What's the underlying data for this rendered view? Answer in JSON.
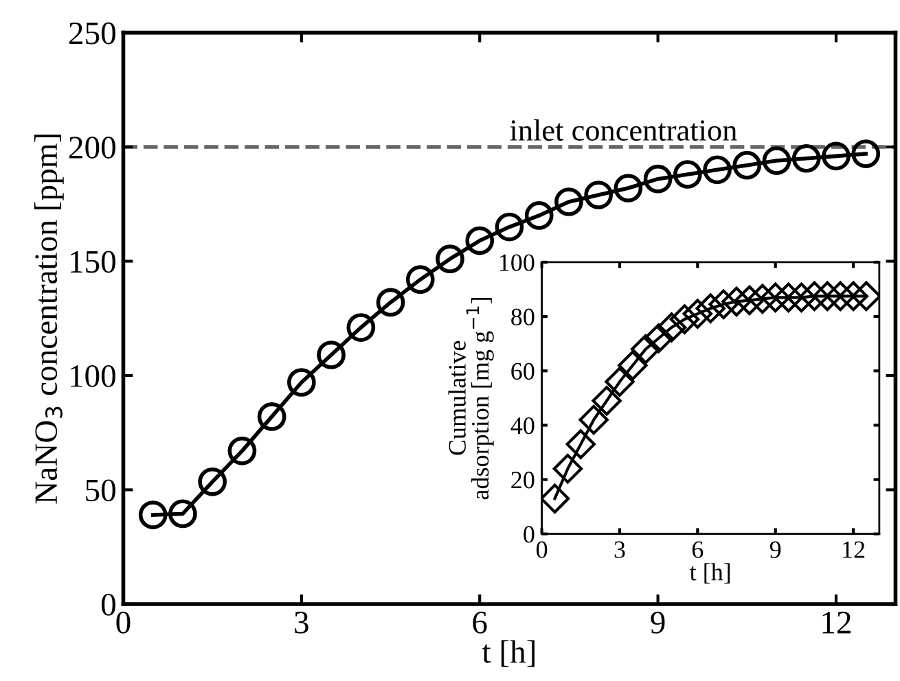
{
  "chart_data": [
    {
      "type": "line",
      "xlabel": "t [h]",
      "ylabel": "NaNO$_{3}$ concentration [ppm]",
      "x": [
        0.5,
        1,
        1.5,
        2,
        2.5,
        3,
        3.5,
        4,
        4.5,
        5,
        5.5,
        6,
        6.5,
        7,
        7.5,
        8,
        8.5,
        9,
        9.5,
        10,
        10.5,
        11,
        11.5,
        12,
        12.5
      ],
      "series": [
        {
          "color": "#000000",
          "values": [
            39,
            39.5,
            53.5,
            67,
            82,
            97,
            109,
            121,
            132,
            142,
            151,
            159,
            165,
            170,
            176,
            179,
            182,
            186,
            188,
            190,
            192,
            194,
            195,
            196,
            197
          ]
        }
      ],
      "marker": "circle",
      "xlim": [
        0,
        13
      ],
      "ylim": [
        0,
        250
      ],
      "xticks": [
        0,
        3,
        6,
        9,
        12
      ],
      "yticks": [
        0,
        50,
        100,
        150,
        200,
        250
      ],
      "ref_lines": [
        {
          "axis": "y",
          "value": 200,
          "label": "inlet concentration",
          "color": "#666666",
          "line_style": "dashed"
        }
      ]
    },
    {
      "type": "line",
      "xlabel": "t [h]",
      "ylabel": "Cumulative\nadsorption [mg g$^{−1}$]",
      "x": [
        0.5,
        1,
        1.5,
        2,
        2.5,
        3,
        3.5,
        4,
        4.5,
        5,
        5.5,
        6,
        6.5,
        7,
        7.5,
        8,
        8.5,
        9,
        9.5,
        10,
        10.5,
        11,
        11.5,
        12,
        12.5
      ],
      "series": [
        {
          "color": "#000000",
          "values": [
            13,
            24,
            33,
            42,
            49,
            56,
            62,
            68,
            72,
            76,
            79,
            81,
            83,
            84.5,
            85.5,
            86,
            86.5,
            87,
            87,
            87,
            87.5,
            87.5,
            87.5,
            87.5,
            87.5
          ]
        }
      ],
      "marker": "diamond",
      "xlim": [
        0,
        13
      ],
      "ylim": [
        0,
        100
      ],
      "xticks": [
        0,
        3,
        6,
        9,
        12
      ],
      "yticks": [
        0,
        20,
        40,
        60,
        80,
        100
      ]
    }
  ]
}
